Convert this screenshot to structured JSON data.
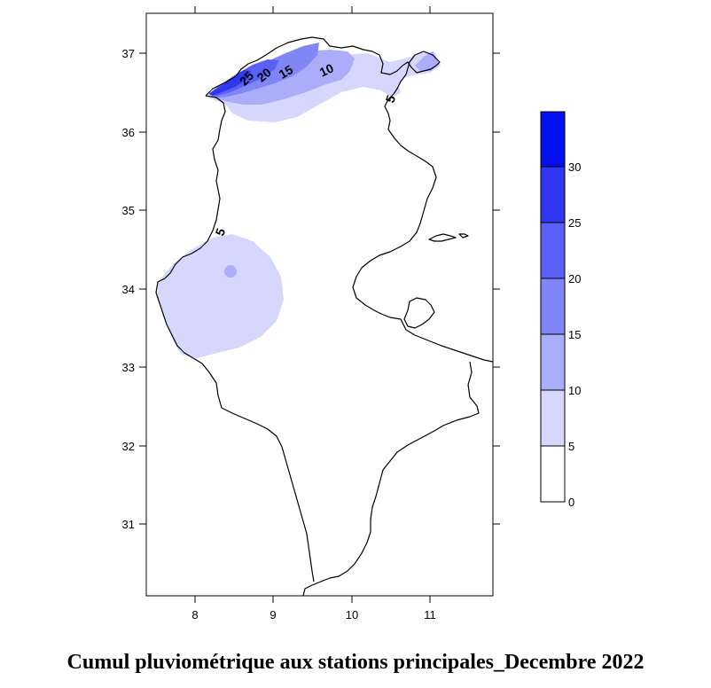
{
  "title": "Cumul pluviométrique aux stations principales_Decembre 2022",
  "axes": {
    "x_ticks": [
      "8",
      "9",
      "10",
      "11"
    ],
    "y_ticks": [
      "37",
      "36",
      "35",
      "34",
      "33",
      "32",
      "31"
    ]
  },
  "contour_labels": [
    "25",
    "20",
    "15",
    "10",
    "5",
    "5"
  ],
  "legend": {
    "labels": [
      "0",
      "5",
      "10",
      "15",
      "20",
      "25",
      "30"
    ],
    "colors": [
      "#ffffff",
      "#d5d7fc",
      "#aaaefa",
      "#8186f7",
      "#5a5ff5",
      "#3036f2",
      "#0510ee"
    ]
  }
}
